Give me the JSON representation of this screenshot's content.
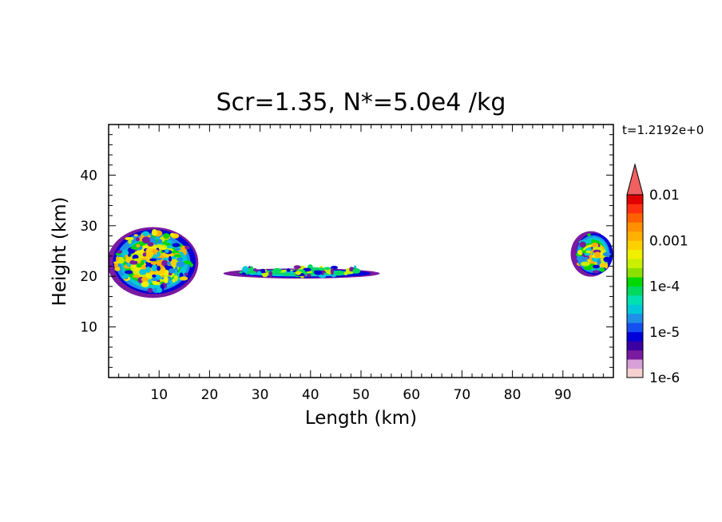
{
  "chart_data": {
    "type": "heatmap",
    "title": "Scr=1.35, N*=5.0e4 /kg",
    "time_label": "t=1.2192e+0",
    "xlabel": "Length  (km)",
    "ylabel": "Height  (km)",
    "xlim": [
      0,
      100
    ],
    "ylim": [
      0,
      50
    ],
    "x_ticks": [
      10,
      20,
      30,
      40,
      50,
      60,
      70,
      80,
      90
    ],
    "y_ticks": [
      10,
      20,
      30,
      40
    ],
    "x_tick_labels": [
      "10",
      "20",
      "30",
      "40",
      "50",
      "60",
      "70",
      "80",
      "90"
    ],
    "y_tick_labels": [
      "10",
      "20",
      "30",
      "40"
    ],
    "grid": false,
    "colorbar": {
      "scale": "log",
      "range": [
        1e-06,
        0.01
      ],
      "extend": "max",
      "labels": [
        {
          "value": 0.01,
          "text": "0.01"
        },
        {
          "value": 0.001,
          "text": "0.001"
        },
        {
          "value": 0.0001,
          "text": "1e-4"
        },
        {
          "value": 1e-05,
          "text": "1e-5"
        },
        {
          "value": 1e-06,
          "text": "1e-6"
        }
      ],
      "colors": [
        "#f6d0d0",
        "#d8a0d8",
        "#7a1aa0",
        "#3a00a0",
        "#0000d8",
        "#1450f0",
        "#1e90e8",
        "#00c8d8",
        "#00e0b0",
        "#00d860",
        "#00d800",
        "#8ce000",
        "#c8f000",
        "#f0f000",
        "#ffd000",
        "#ffb000",
        "#ff9000",
        "#ff6000",
        "#ff3010",
        "#e00000"
      ],
      "extend_color": "#f06060"
    },
    "features": [
      {
        "name": "left cloud core",
        "x_range": [
          0,
          18
        ],
        "y_range": [
          16,
          30
        ],
        "peak_value": 0.001
      },
      {
        "name": "thin horizontal layer",
        "x_range": [
          23,
          54
        ],
        "y_range": [
          20,
          22
        ],
        "peak_value": 0.0001
      },
      {
        "name": "right edge cloud",
        "x_range": [
          92,
          100
        ],
        "y_range": [
          20,
          29
        ],
        "peak_value": 0.001
      }
    ]
  }
}
